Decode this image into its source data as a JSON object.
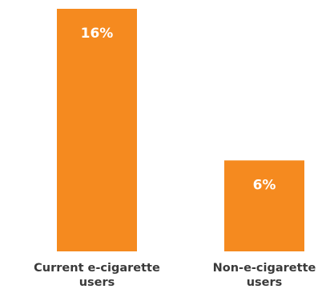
{
  "chart_data": {
    "type": "bar",
    "categories": [
      "Current e-cigarette users",
      "Non-e-cigarette users"
    ],
    "category_label_lines": [
      [
        "Current e-cigarette",
        "users"
      ],
      [
        "Non-e-cigarette",
        "users"
      ]
    ],
    "values": [
      16,
      6
    ],
    "value_labels": [
      "16%",
      "6%"
    ],
    "unit": "%",
    "ylim": [
      0,
      16
    ],
    "grid": false,
    "legend": "none",
    "bar_color": "#F58A1F",
    "value_label_color": "#FFFFFF",
    "category_label_color": "#3A3A3A"
  }
}
